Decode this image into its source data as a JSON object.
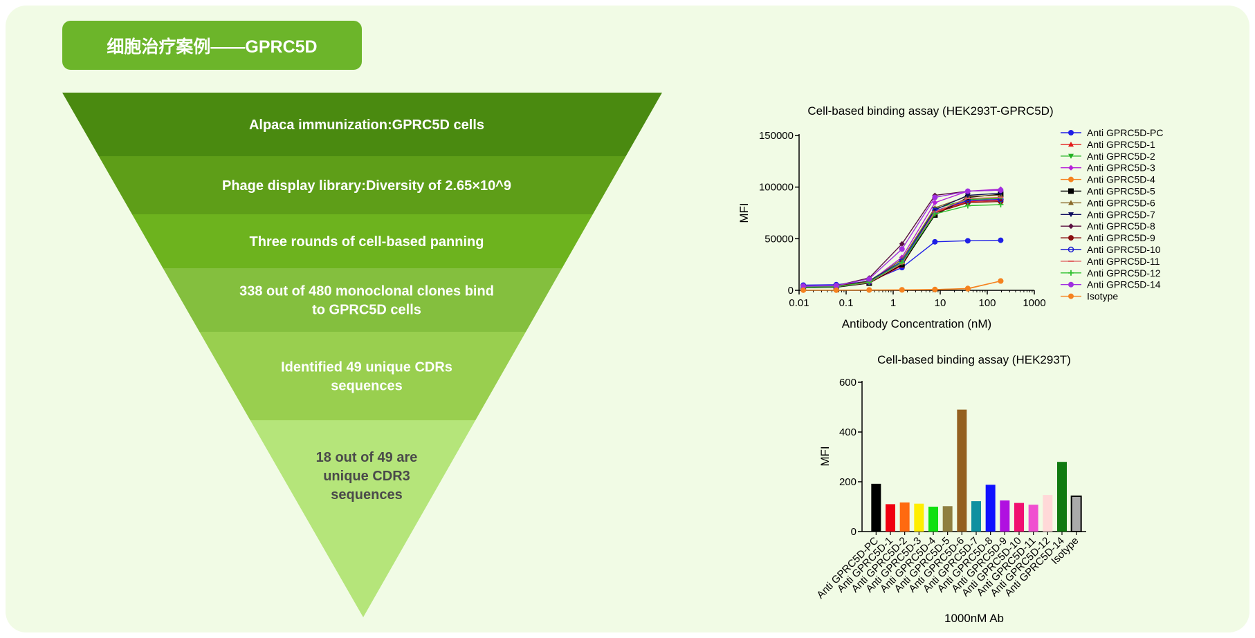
{
  "header": {
    "title": "细胞治疗案例——GPRC5D"
  },
  "funnel": {
    "steps": [
      {
        "lines": [
          "Alpaca immunization:GPRC5D cells"
        ],
        "color": "#4a8a10",
        "text_color": "#ffffff"
      },
      {
        "lines": [
          "Phage display library:Diversity of 2.65×10^9"
        ],
        "color": "#5e9e18",
        "text_color": "#ffffff"
      },
      {
        "lines": [
          "Three rounds of cell-based panning"
        ],
        "color": "#6db31e",
        "text_color": "#ffffff"
      },
      {
        "lines": [
          "338 out of 480 monoclonal clones bind",
          "to GPRC5D cells"
        ],
        "color": "#84bf3e",
        "text_color": "#ffffff"
      },
      {
        "lines": [
          "Identified 49 unique CDRs",
          "sequences"
        ],
        "color": "#99cf4f",
        "text_color": "#ffffff"
      },
      {
        "lines": [
          "18 out of 49 are",
          "unique CDR3",
          "sequences"
        ],
        "color": "#b5e57a",
        "text_color": "#4a4a4a"
      }
    ]
  },
  "chart_data": [
    {
      "type": "line",
      "title": "Cell-based binding assay (HEK293T-GPRC5D)",
      "xlabel": "Antibody Concentration (nM)",
      "ylabel": "MFI",
      "xscale": "log",
      "xlim": [
        0.01,
        1000
      ],
      "ylim": [
        0,
        150000
      ],
      "xticks": [
        "0.01",
        "0.1",
        "1",
        "10",
        "100",
        "1000"
      ],
      "yticks": [
        "0",
        "50000",
        "100000",
        "150000"
      ],
      "x": [
        0.0123,
        0.0617,
        0.309,
        1.54,
        7.72,
        38.6,
        193
      ],
      "legend_position": "right",
      "series": [
        {
          "name": "Anti GPRC5D-PC",
          "color": "#1f1fe6",
          "marker": "circle",
          "values": [
            5000,
            5500,
            8500,
            22000,
            47000,
            48000,
            48500
          ]
        },
        {
          "name": "Anti GPRC5D-1",
          "color": "#e31a1a",
          "marker": "triangle-up",
          "values": [
            3000,
            3500,
            7000,
            24000,
            76000,
            86000,
            87000
          ]
        },
        {
          "name": "Anti GPRC5D-2",
          "color": "#22b022",
          "marker": "triangle-down",
          "values": [
            3500,
            4000,
            9000,
            30000,
            79000,
            88000,
            89000
          ]
        },
        {
          "name": "Anti GPRC5D-3",
          "color": "#b520d8",
          "marker": "diamond",
          "values": [
            3000,
            3500,
            8000,
            32000,
            85000,
            96000,
            98000
          ]
        },
        {
          "name": "Anti GPRC5D-4",
          "color": "#f5821f",
          "marker": "circle",
          "values": [
            200,
            200,
            300,
            500,
            800,
            1500,
            9000
          ]
        },
        {
          "name": "Anti GPRC5D-5",
          "color": "#000000",
          "marker": "square",
          "values": [
            2500,
            3000,
            7000,
            25000,
            73000,
            90000,
            93000
          ]
        },
        {
          "name": "Anti GPRC5D-6",
          "color": "#8a6a2a",
          "marker": "triangle-up",
          "values": [
            3000,
            3500,
            8000,
            30000,
            80000,
            91000,
            92000
          ]
        },
        {
          "name": "Anti GPRC5D-7",
          "color": "#101060",
          "marker": "triangle-down",
          "values": [
            3500,
            4000,
            9000,
            28000,
            78000,
            92000,
            94000
          ]
        },
        {
          "name": "Anti GPRC5D-8",
          "color": "#5a1040",
          "marker": "diamond",
          "values": [
            4000,
            4500,
            12000,
            45000,
            92000,
            96000,
            97000
          ]
        },
        {
          "name": "Anti GPRC5D-9",
          "color": "#8a1010",
          "marker": "circle",
          "values": [
            3500,
            4000,
            8500,
            27000,
            75000,
            85000,
            86000
          ]
        },
        {
          "name": "Anti GPRC5D-10",
          "color": "#1a1ad0",
          "marker": "circle-open",
          "values": [
            3000,
            3500,
            8000,
            28000,
            77000,
            87000,
            88000
          ]
        },
        {
          "name": "Anti GPRC5D-11",
          "color": "#e06060",
          "marker": "dash",
          "values": [
            3000,
            3500,
            7500,
            26000,
            76000,
            89000,
            90000
          ]
        },
        {
          "name": "Anti GPRC5D-12",
          "color": "#30c030",
          "marker": "plus",
          "values": [
            3000,
            3500,
            8000,
            27000,
            74000,
            82000,
            83000
          ]
        },
        {
          "name": "Anti GPRC5D-14",
          "color": "#a030e0",
          "marker": "circle",
          "values": [
            4000,
            4500,
            11000,
            40000,
            90000,
            96000,
            97000
          ]
        },
        {
          "name": "Isotype",
          "color": "#f5821f",
          "marker": "circle",
          "values": [
            200,
            200,
            300,
            400,
            700,
            1800,
            9000
          ]
        }
      ]
    },
    {
      "type": "bar",
      "title": "Cell-based binding assay (HEK293T)",
      "xlabel": "1000nM Ab",
      "ylabel": "MFI",
      "ylim": [
        0,
        600
      ],
      "yticks": [
        "0",
        "200",
        "400",
        "600"
      ],
      "categories": [
        "Anti GPRC5D-PC",
        "Anti GPRC5D-1",
        "Anti GPRC5D-2",
        "Anti GPRC5D-3",
        "Anti GPRC5D-4",
        "Anti GPRC5D-5",
        "Anti GPRC5D-6",
        "Anti GPRC5D-7",
        "Anti GPRC5D-8",
        "Anti GPRC5D-9",
        "Anti GPRC5D-10",
        "Anti GPRC5D-11",
        "Anti GPRC5D-12",
        "Anti GPRC5D-14",
        "Isotype"
      ],
      "values": [
        192,
        110,
        117,
        112,
        100,
        102,
        490,
        122,
        188,
        125,
        115,
        108,
        147,
        280,
        142
      ],
      "colors": [
        "#000000",
        "#f00010",
        "#ff6a10",
        "#ffee00",
        "#10e010",
        "#8f7f40",
        "#946020",
        "#1090a0",
        "#1010ff",
        "#b010e0",
        "#f01070",
        "#f050d0",
        "#ffd8d8",
        "#107a10",
        "#aaaaaa"
      ]
    }
  ]
}
